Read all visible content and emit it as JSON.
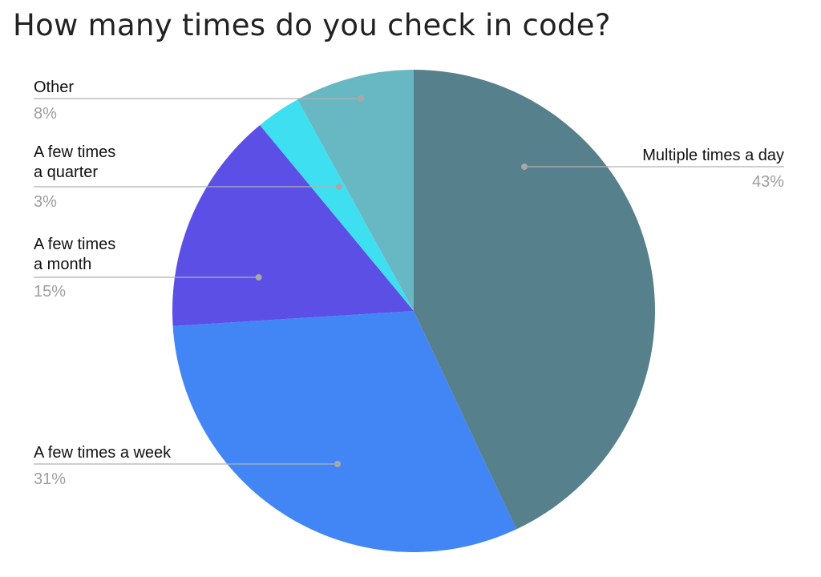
{
  "chart_data": {
    "type": "pie",
    "title": "How many times do you check in code?",
    "slices": [
      {
        "name": "Multiple times a day",
        "label_lines": [
          "Multiple times a day"
        ],
        "value": 43,
        "label": "43%",
        "color": "#56808b"
      },
      {
        "name": "A few times a week",
        "label_lines": [
          "A few times a week"
        ],
        "value": 31,
        "label": "31%",
        "color": "#4285f4"
      },
      {
        "name": "A few times a month",
        "label_lines": [
          "A few times",
          "a month"
        ],
        "value": 15,
        "label": "15%",
        "color": "#5b4fe6"
      },
      {
        "name": "A few times a quarter",
        "label_lines": [
          "A few times",
          "a quarter"
        ],
        "value": 3,
        "label": "3%",
        "color": "#3fdff2"
      },
      {
        "name": "Other",
        "label_lines": [
          "Other"
        ],
        "value": 8,
        "label": "8%",
        "color": "#68b8c3"
      }
    ],
    "start_angle_deg": 0,
    "direction": "clockwise",
    "legend": "none"
  }
}
